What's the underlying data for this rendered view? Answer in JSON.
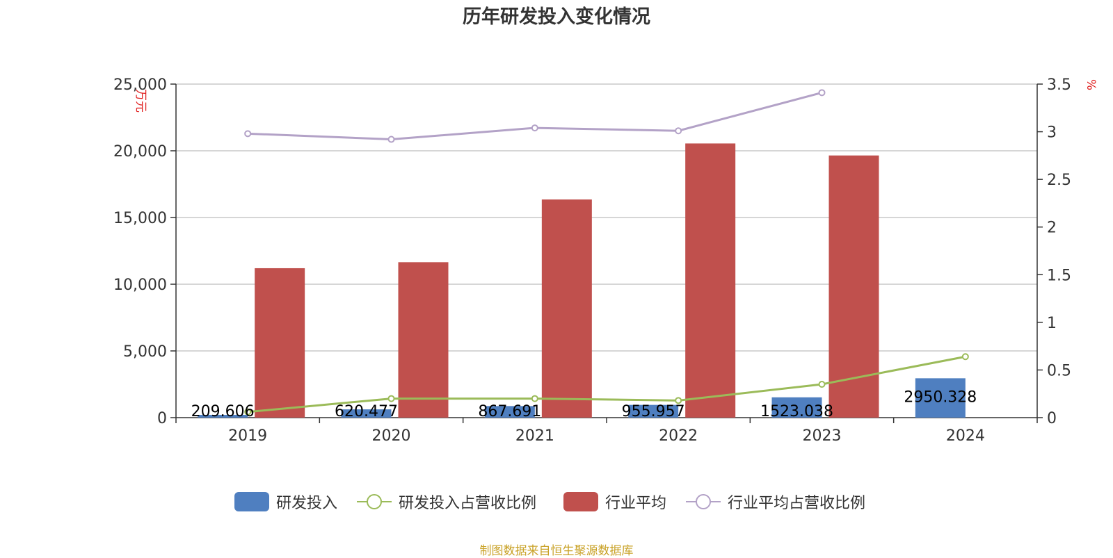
{
  "title": "历年研发投入变化情况",
  "source": "制图数据来自恒生聚源数据库",
  "chart_data": {
    "type": "bar",
    "categories": [
      "2019",
      "2020",
      "2021",
      "2022",
      "2023",
      "2024"
    ],
    "left_axis": {
      "unit": "万元",
      "min": 0,
      "max": 25000,
      "ticks": [
        0,
        5000,
        10000,
        15000,
        20000,
        25000
      ],
      "tick_labels": [
        "0",
        "5,000",
        "10,000",
        "15,000",
        "20,000",
        "25,000"
      ]
    },
    "right_axis": {
      "unit": "%",
      "min": 0,
      "max": 3.5,
      "ticks": [
        0,
        0.5,
        1,
        1.5,
        2,
        2.5,
        3,
        3.5
      ],
      "tick_labels": [
        "0",
        "0.5",
        "1",
        "1.5",
        "2",
        "2.5",
        "3",
        "3.5"
      ]
    },
    "grid": true,
    "legend_position": "bottom",
    "series": [
      {
        "name": "研发投入",
        "type": "bar",
        "axis": "left",
        "color": "#4f7fc0",
        "values": [
          209.606,
          620.477,
          867.691,
          955.957,
          1523.038,
          2950.328
        ],
        "labels": [
          "209.606",
          "620.477",
          "867.691",
          "955.957",
          "1523.038",
          "2950.328"
        ]
      },
      {
        "name": "研发投入占营收比例",
        "type": "line",
        "axis": "right",
        "color": "#9bbb59",
        "values": [
          0.06,
          0.2,
          0.2,
          0.18,
          0.35,
          0.64
        ]
      },
      {
        "name": "行业平均",
        "type": "bar",
        "axis": "left",
        "color": "#c0504d",
        "values": [
          11200,
          11650,
          16350,
          20550,
          19650,
          null
        ]
      },
      {
        "name": "行业平均占营收比例",
        "type": "line",
        "axis": "right",
        "color": "#b3a2c7",
        "values": [
          2.98,
          2.92,
          3.04,
          3.01,
          3.41,
          null
        ]
      }
    ]
  }
}
